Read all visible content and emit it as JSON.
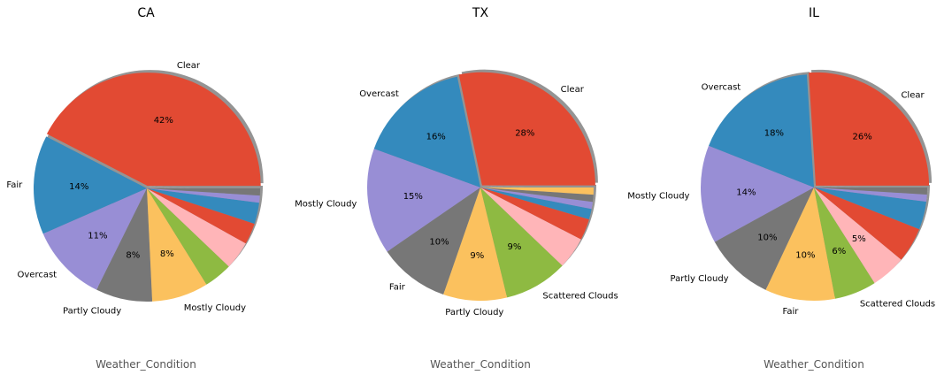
{
  "chart_data": [
    {
      "type": "pie",
      "title": "CA",
      "xlabel": "Weather_Condition",
      "shadow": true,
      "startangle_deg": 0,
      "direction": "counterclockwise",
      "explode_first": true,
      "slices": [
        {
          "label": "Clear",
          "value": 42,
          "pct_label": "42%",
          "color": "#E24A33"
        },
        {
          "label": "Fair",
          "value": 14,
          "pct_label": "14%",
          "color": "#348ABD"
        },
        {
          "label": "Overcast",
          "value": 11,
          "pct_label": "11%",
          "color": "#988ED5"
        },
        {
          "label": "Partly Cloudy",
          "value": 8,
          "pct_label": "8%",
          "color": "#777777"
        },
        {
          "label": "Mostly Cloudy",
          "value": 8,
          "pct_label": "8%",
          "color": "#FBC15E"
        },
        {
          "label": "",
          "value": 4,
          "pct_label": "",
          "color": "#8EBA42"
        },
        {
          "label": "",
          "value": 4,
          "pct_label": "",
          "color": "#FFB5B8"
        },
        {
          "label": "",
          "value": 3,
          "pct_label": "",
          "color": "#E24A33"
        },
        {
          "label": "",
          "value": 3,
          "pct_label": "",
          "color": "#348ABD"
        },
        {
          "label": "",
          "value": 1,
          "pct_label": "",
          "color": "#988ED5"
        },
        {
          "label": "",
          "value": 1,
          "pct_label": "",
          "color": "#777777"
        }
      ]
    },
    {
      "type": "pie",
      "title": "TX",
      "xlabel": "Weather_Condition",
      "shadow": true,
      "startangle_deg": 0,
      "direction": "counterclockwise",
      "explode_first": true,
      "slices": [
        {
          "label": "Clear",
          "value": 28,
          "pct_label": "28%",
          "color": "#E24A33"
        },
        {
          "label": "Overcast",
          "value": 16,
          "pct_label": "16%",
          "color": "#348ABD"
        },
        {
          "label": "Mostly Cloudy",
          "value": 15,
          "pct_label": "15%",
          "color": "#988ED5"
        },
        {
          "label": "Fair",
          "value": 10,
          "pct_label": "10%",
          "color": "#777777"
        },
        {
          "label": "Partly Cloudy",
          "value": 9,
          "pct_label": "9%",
          "color": "#FBC15E"
        },
        {
          "label": "Scattered Clouds",
          "value": 9,
          "pct_label": "9%",
          "color": "#8EBA42"
        },
        {
          "label": "",
          "value": 4.5,
          "pct_label": "",
          "color": "#FFB5B8"
        },
        {
          "label": "",
          "value": 3,
          "pct_label": "",
          "color": "#E24A33"
        },
        {
          "label": "",
          "value": 1.5,
          "pct_label": "",
          "color": "#348ABD"
        },
        {
          "label": "",
          "value": 1,
          "pct_label": "",
          "color": "#988ED5"
        },
        {
          "label": "",
          "value": 1,
          "pct_label": "",
          "color": "#777777"
        },
        {
          "label": "",
          "value": 1,
          "pct_label": "",
          "color": "#FBC15E"
        }
      ]
    },
    {
      "type": "pie",
      "title": "IL",
      "xlabel": "Weather_Condition",
      "shadow": true,
      "startangle_deg": 0,
      "direction": "counterclockwise",
      "explode_first": true,
      "slices": [
        {
          "label": "Clear",
          "value": 26,
          "pct_label": "26%",
          "color": "#E24A33"
        },
        {
          "label": "Overcast",
          "value": 18,
          "pct_label": "18%",
          "color": "#348ABD"
        },
        {
          "label": "Mostly Cloudy",
          "value": 14,
          "pct_label": "14%",
          "color": "#988ED5"
        },
        {
          "label": "Partly Cloudy",
          "value": 10,
          "pct_label": "10%",
          "color": "#777777"
        },
        {
          "label": "Fair",
          "value": 10,
          "pct_label": "10%",
          "color": "#FBC15E"
        },
        {
          "label": "Scattered Clouds",
          "value": 6,
          "pct_label": "6%",
          "color": "#8EBA42"
        },
        {
          "label": "",
          "value": 5,
          "pct_label": "5%",
          "color": "#FFB5B8"
        },
        {
          "label": "",
          "value": 5,
          "pct_label": "",
          "color": "#E24A33"
        },
        {
          "label": "",
          "value": 4,
          "pct_label": "",
          "color": "#348ABD"
        },
        {
          "label": "",
          "value": 1,
          "pct_label": "",
          "color": "#988ED5"
        },
        {
          "label": "",
          "value": 1,
          "pct_label": "",
          "color": "#777777"
        }
      ]
    }
  ]
}
